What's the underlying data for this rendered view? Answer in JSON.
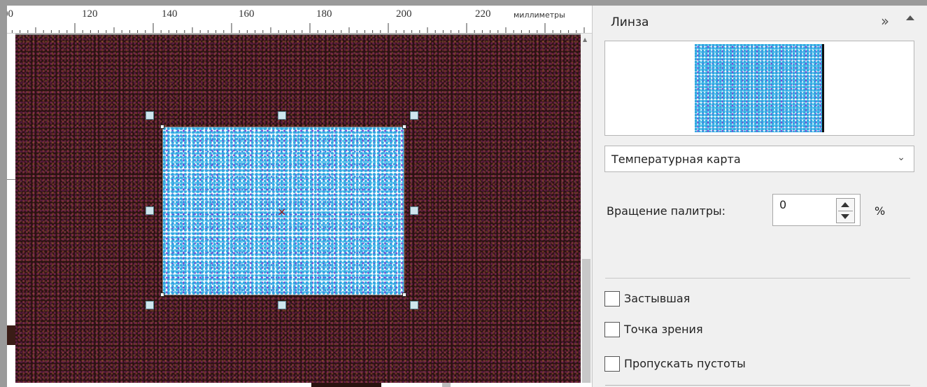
{
  "ruler": {
    "labels": [
      "00",
      "120",
      "140",
      "160",
      "180",
      "200",
      "220"
    ],
    "unit": "миллиметры"
  },
  "canvas": {
    "lens_object": "lens-rectangle",
    "colors": {
      "background": "#2a1310",
      "lens_fill": "#ffffff",
      "lens_dots": "#2fa6e0"
    }
  },
  "panel": {
    "title": "Линза",
    "expand_icon": "double-chevron-right-icon",
    "collapse_icon": "triangle-up-icon",
    "lens_type": {
      "selected": "Температурная карта"
    },
    "rotation": {
      "label": "Вращение палитры:",
      "value": "0",
      "unit": "%"
    },
    "options": [
      {
        "label": "Застывшая",
        "checked": false
      },
      {
        "label": "Точка зрения",
        "checked": false
      },
      {
        "label": "Пропускать пустоты",
        "checked": false
      }
    ]
  }
}
